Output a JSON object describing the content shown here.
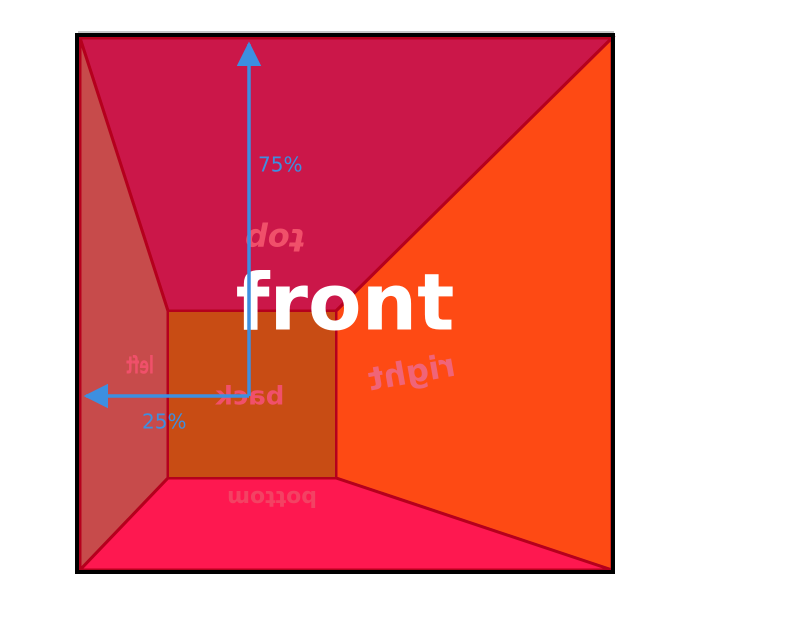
{
  "faces": {
    "front": "front",
    "back": "back",
    "top": "top",
    "bottom": "bottom",
    "left": "left",
    "right": "right"
  },
  "origin": {
    "x_label": "25%",
    "y_label": "75%"
  },
  "colors": {
    "top": "#cb1749",
    "bottom": "#fe1850",
    "left": "#c74b4b",
    "right": "#fe4a14",
    "back": "#c84c14",
    "edge": "#b5001d",
    "face_text": "#f0506a",
    "front_text": "#ffffff",
    "arrow": "#3d8fe0",
    "frame": "#000000"
  }
}
